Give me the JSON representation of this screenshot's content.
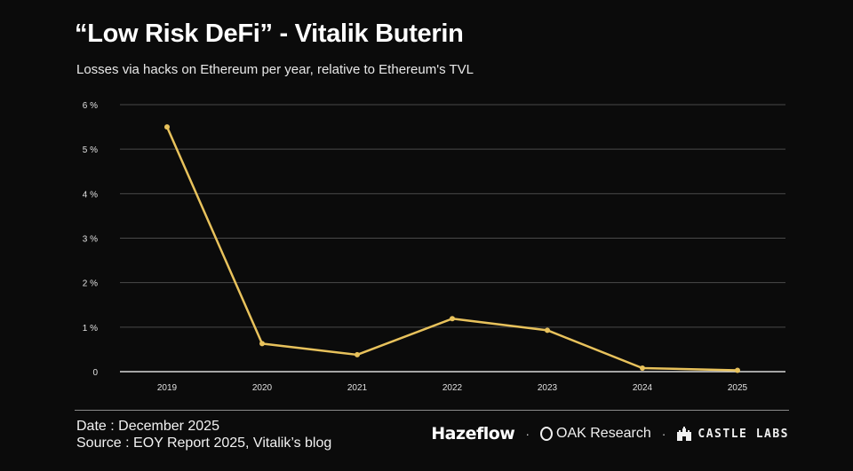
{
  "header": {
    "title": "“Low Risk DeFi” - Vitalik Buterin",
    "subtitle": "Losses via hacks on Ethereum per year, relative to Ethereum's TVL"
  },
  "footer": {
    "date": "Date : December 2025",
    "source": "Source : EOY Report 2025, Vitalik’s blog",
    "logos": {
      "hazeflow": "Hazeflow",
      "separator": "·",
      "oak": "OAK Research",
      "castle": "CASTLE LABS"
    }
  },
  "chart_data": {
    "type": "line",
    "x": [
      "2019",
      "2020",
      "2021",
      "2022",
      "2023",
      "2024",
      "2025"
    ],
    "series": [
      {
        "values": [
          5.5,
          0.63,
          0.38,
          1.19,
          0.93,
          0.08,
          0.03
        ],
        "color": "#e8c25c"
      }
    ],
    "yticks": [
      0,
      1,
      2,
      3,
      4,
      5,
      6
    ],
    "ytick_labels": [
      "0",
      "1 %",
      "2 %",
      "3 %",
      "4 %",
      "5 %",
      "6 %"
    ],
    "ylim": [
      0,
      6
    ],
    "grid": true,
    "colors": {
      "line": "#e8c25c",
      "grid": "#4a4a4a",
      "axis": "#d8d8d8",
      "background": "#0b0b0b"
    }
  }
}
